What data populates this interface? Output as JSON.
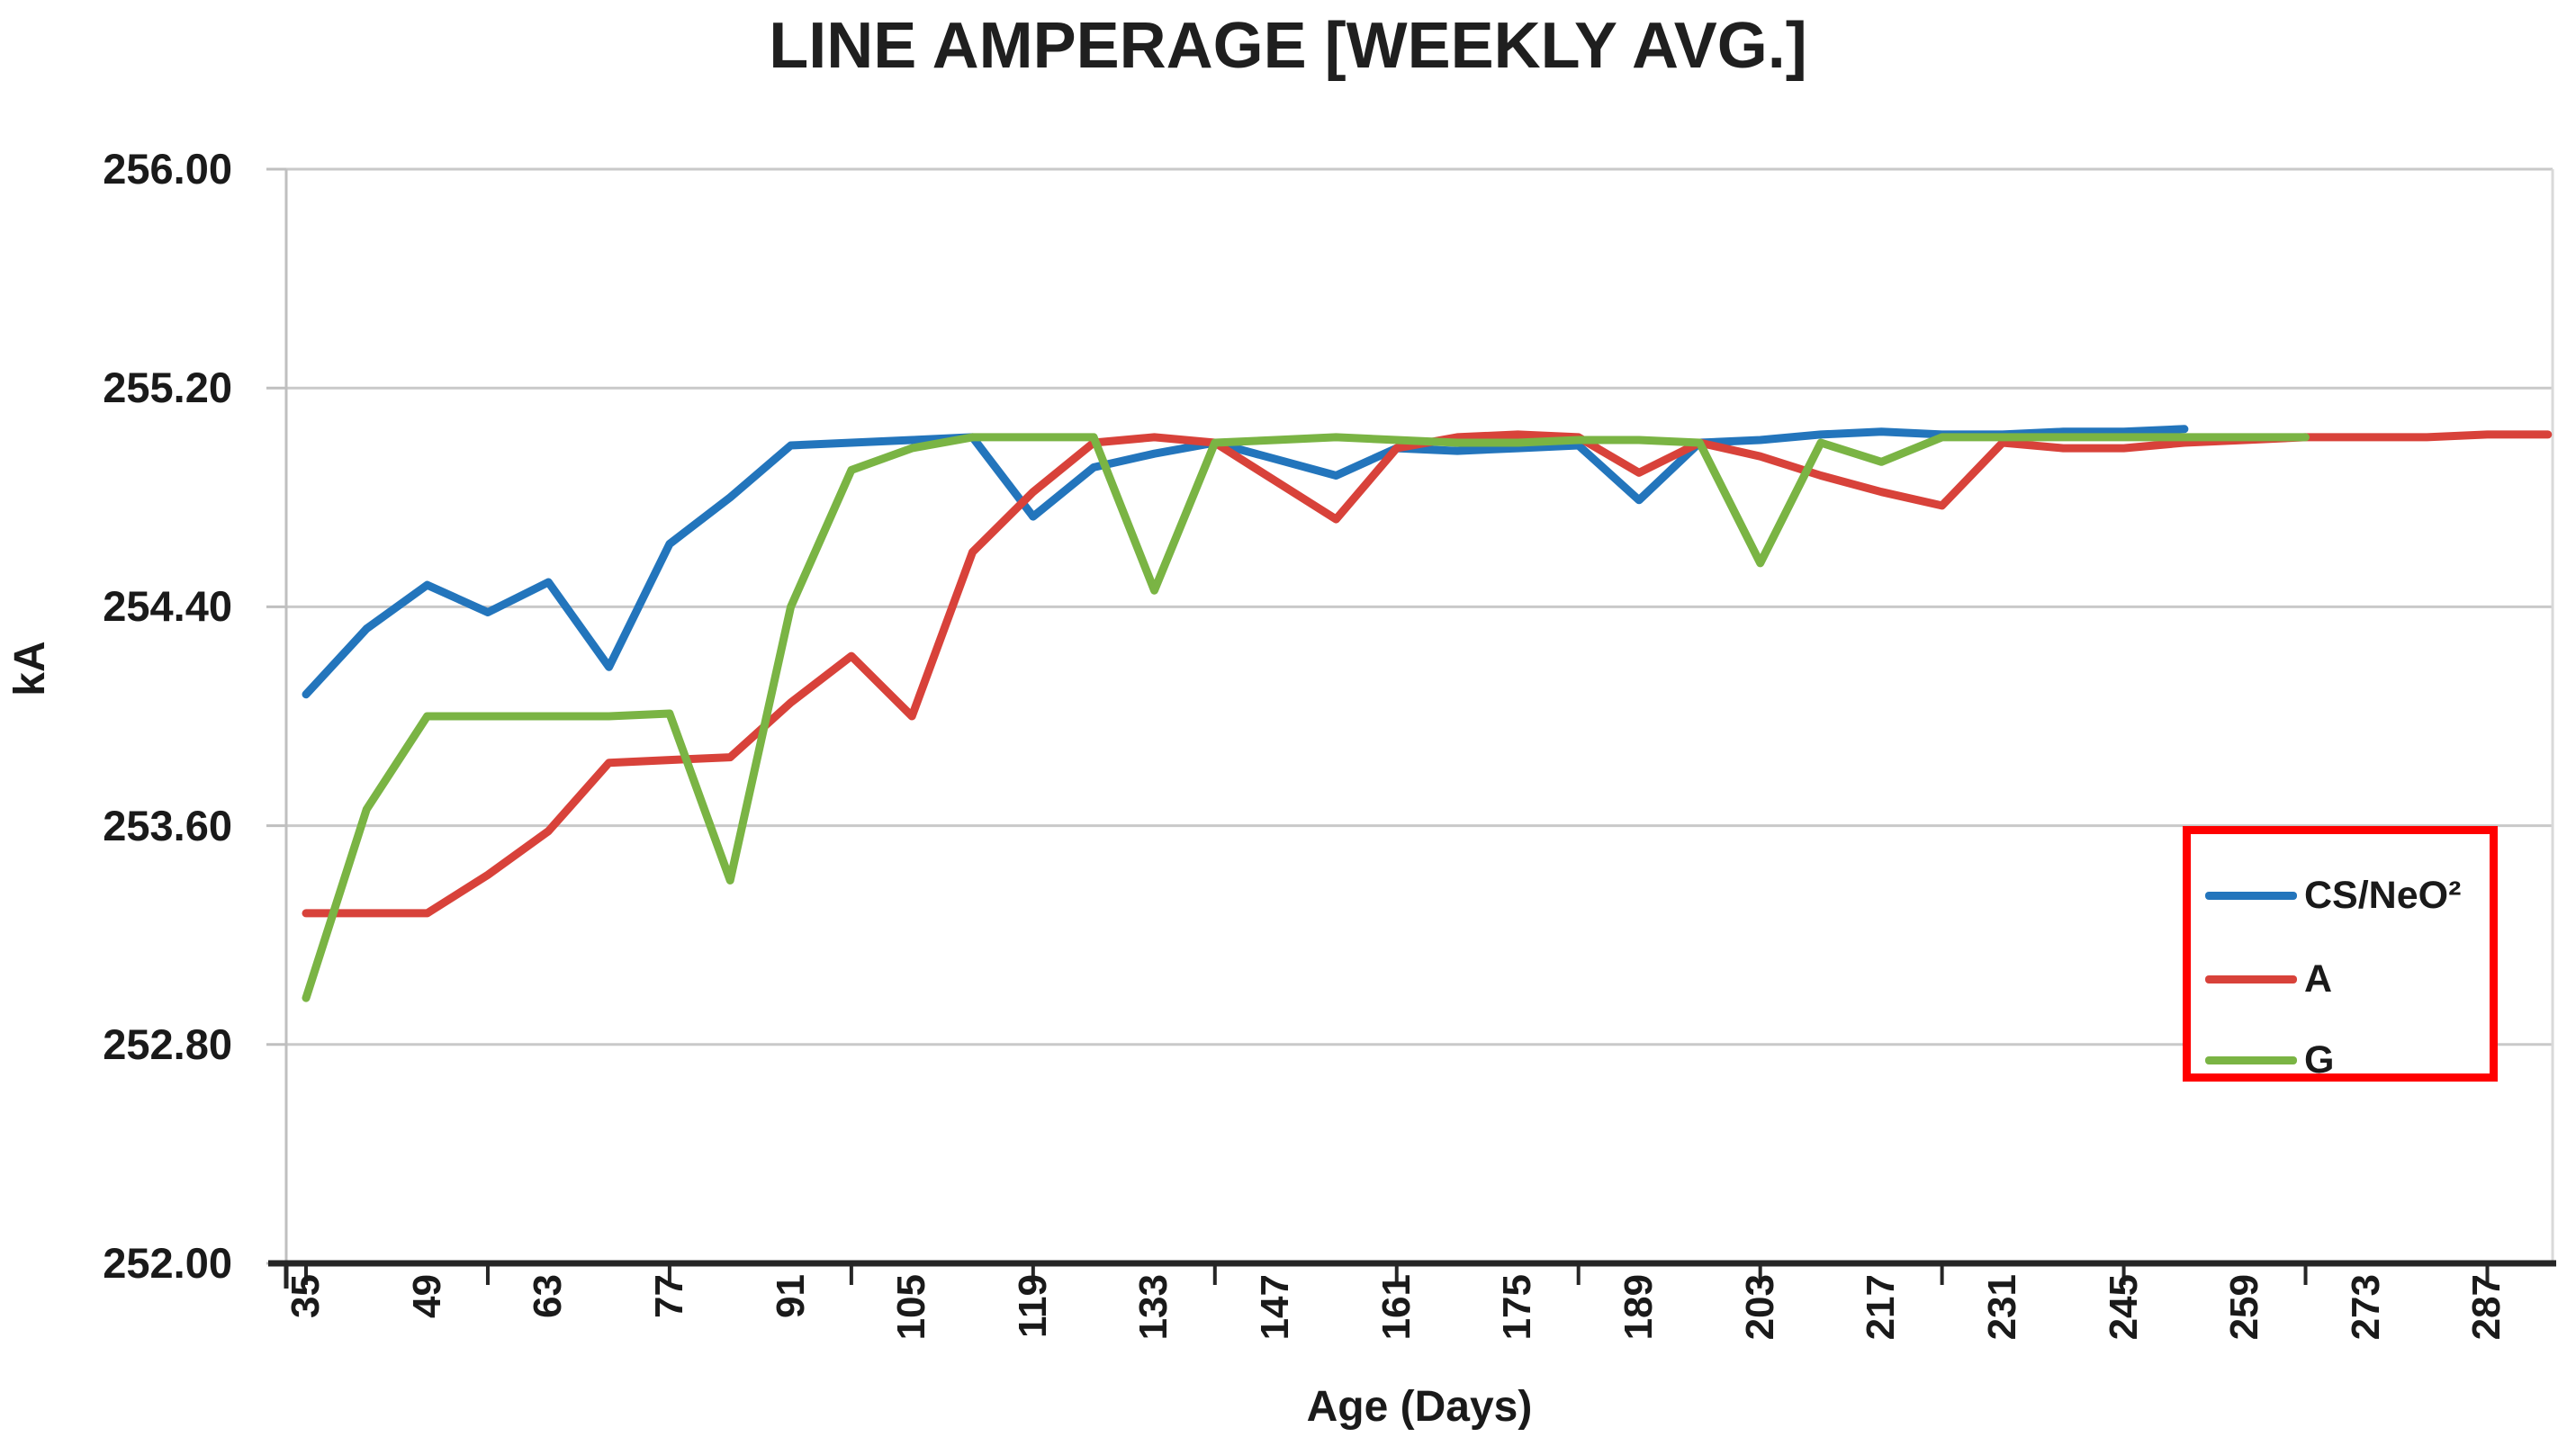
{
  "title": "LINE AMPERAGE [WEEKLY AVG.]",
  "chart_data": {
    "type": "line",
    "title": "LINE AMPERAGE [WEEKLY AVG.]",
    "xlabel": "Age (Days)",
    "ylabel": "kA",
    "ylim": [
      252.0,
      256.0
    ],
    "grid": true,
    "legend_position": "middle-right-inside",
    "y_ticks": [
      "256.00",
      "255.20",
      "254.40",
      "253.60",
      "252.80",
      "252.00"
    ],
    "x_tick_labels": [
      "35",
      "49",
      "63",
      "77",
      "91",
      "105",
      "119",
      "133",
      "147",
      "161",
      "175",
      "189",
      "203",
      "217",
      "231",
      "245",
      "259",
      "273",
      "287"
    ],
    "x_label_interval_days": 14,
    "x_minor_tick_days": [
      35,
      56,
      77,
      98,
      119,
      140,
      161,
      182,
      203,
      224,
      245,
      266,
      287
    ],
    "x": [
      35,
      42,
      49,
      56,
      63,
      70,
      77,
      84,
      91,
      98,
      105,
      112,
      119,
      126,
      133,
      140,
      147,
      154,
      161,
      168,
      175,
      182,
      189,
      196,
      203,
      210,
      217,
      224,
      231,
      238,
      245,
      252,
      259,
      266,
      273,
      280,
      287,
      294
    ],
    "series": [
      {
        "name": "CS/NeO²",
        "color": "#2375BC",
        "values": [
          254.08,
          254.32,
          254.48,
          254.38,
          254.49,
          254.18,
          254.63,
          254.8,
          254.99,
          255.0,
          255.01,
          255.02,
          254.73,
          254.91,
          254.96,
          255.0,
          254.94,
          254.88,
          254.98,
          254.97,
          254.98,
          254.99,
          254.79,
          255.0,
          255.01,
          255.03,
          255.04,
          255.03,
          255.03,
          255.04,
          255.04,
          255.05,
          null,
          null,
          null,
          null,
          null,
          null
        ]
      },
      {
        "name": "A",
        "color": "#D8423A",
        "values": [
          253.28,
          253.28,
          253.28,
          253.42,
          253.58,
          253.83,
          253.84,
          253.85,
          254.05,
          254.22,
          254.0,
          254.6,
          254.82,
          255.0,
          255.02,
          255.0,
          254.86,
          254.72,
          254.98,
          255.02,
          255.03,
          255.02,
          254.89,
          255.0,
          254.95,
          254.88,
          254.82,
          254.77,
          255.0,
          254.98,
          254.98,
          255.0,
          255.01,
          255.02,
          255.02,
          255.02,
          255.03,
          255.03
        ]
      },
      {
        "name": "G",
        "color": "#7AB444",
        "values": [
          252.97,
          253.66,
          254.0,
          254.0,
          254.0,
          254.0,
          254.01,
          253.4,
          254.4,
          254.9,
          254.98,
          255.02,
          255.02,
          255.02,
          254.46,
          255.0,
          255.01,
          255.02,
          255.01,
          255.0,
          255.0,
          255.01,
          255.01,
          255.0,
          254.56,
          255.0,
          254.93,
          255.02,
          255.02,
          255.02,
          255.02,
          255.02,
          255.02,
          255.02,
          null,
          null,
          null,
          null
        ]
      }
    ]
  },
  "legend": {
    "border_color": "#FF0000"
  },
  "colors": {
    "gridline": "#C9C9C9",
    "y_axis_line": "#BFBFBF",
    "x_axis_line": "#262626",
    "plot_right_border": "#D9D9D9",
    "text": "#1A1A1A"
  }
}
